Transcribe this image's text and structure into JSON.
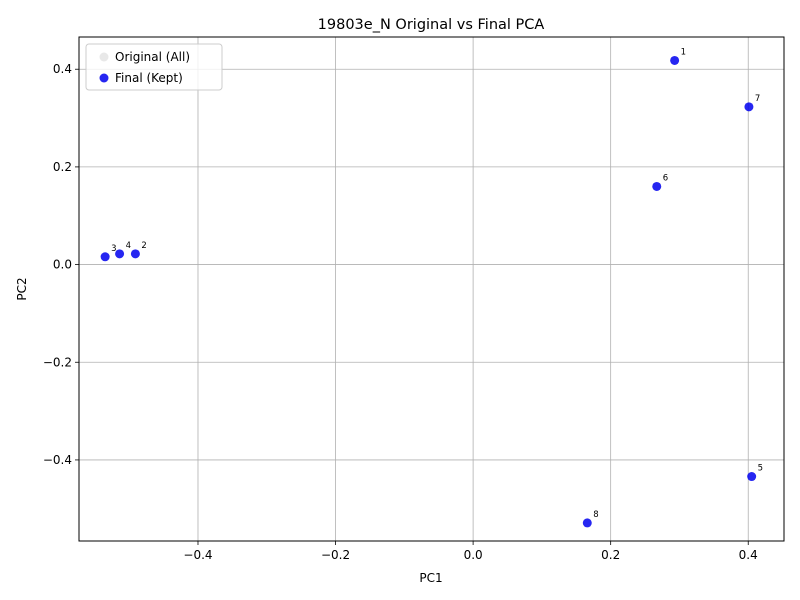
{
  "chart_data": {
    "type": "scatter",
    "title": "19803e_N Original vs Final PCA",
    "xlabel": "PC1",
    "ylabel": "PC2",
    "xlim": [
      -0.573,
      0.452
    ],
    "ylim": [
      -0.566,
      0.466
    ],
    "xticks": [
      -0.4,
      -0.2,
      0.0,
      0.2,
      0.4
    ],
    "xtick_labels": [
      "−0.4",
      "−0.2",
      "0.0",
      "0.2",
      "0.4"
    ],
    "yticks": [
      -0.4,
      -0.2,
      0.0,
      0.2,
      0.4
    ],
    "ytick_labels": [
      "−0.4",
      "−0.2",
      "0.0",
      "0.2",
      "0.4"
    ],
    "grid": true,
    "legend_position": "upper-left",
    "series": [
      {
        "name": "Original (All)",
        "color": "#d9d9d9",
        "points": []
      },
      {
        "name": "Final (Kept)",
        "color": "#0000ee",
        "points": [
          {
            "label": "1",
            "x": 0.293,
            "y": 0.418
          },
          {
            "label": "2",
            "x": -0.491,
            "y": 0.022
          },
          {
            "label": "3",
            "x": -0.535,
            "y": 0.016
          },
          {
            "label": "4",
            "x": -0.514,
            "y": 0.022
          },
          {
            "label": "5",
            "x": 0.405,
            "y": -0.434
          },
          {
            "label": "6",
            "x": 0.267,
            "y": 0.16
          },
          {
            "label": "7",
            "x": 0.401,
            "y": 0.323
          },
          {
            "label": "8",
            "x": 0.166,
            "y": -0.529
          }
        ]
      }
    ]
  }
}
